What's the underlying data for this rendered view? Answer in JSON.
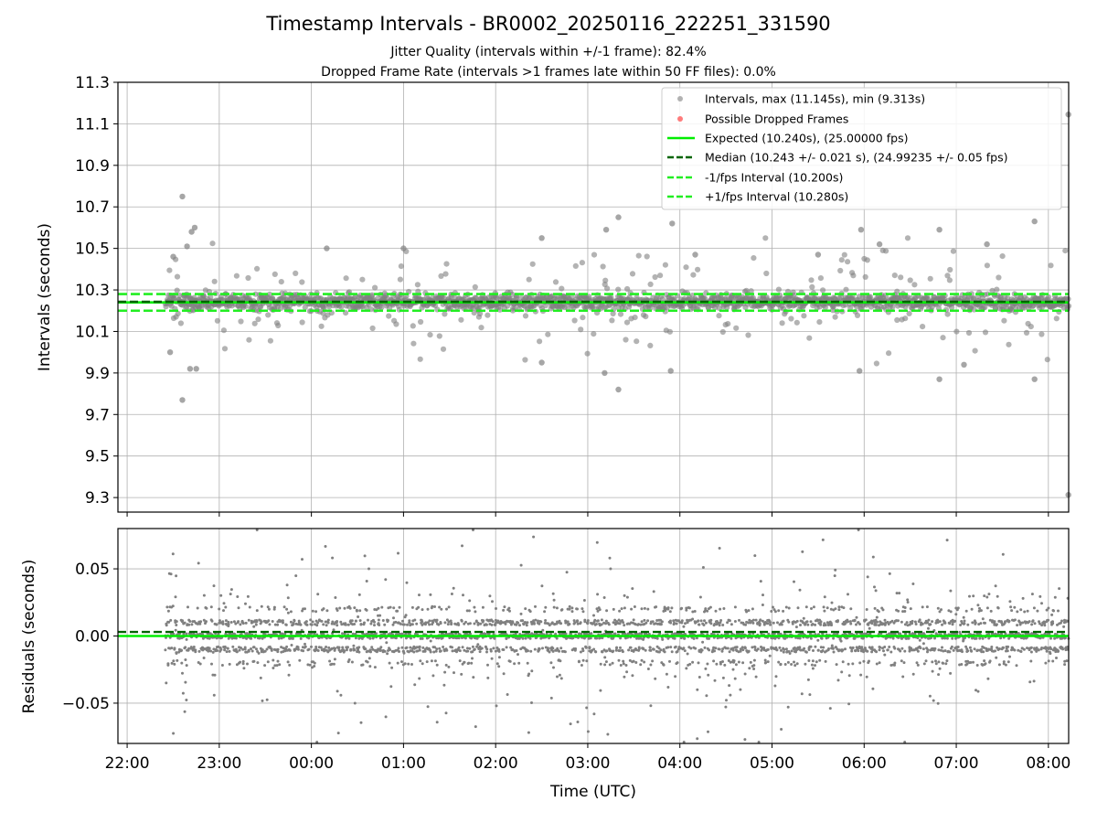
{
  "title": "Timestamp Intervals - BR0002_20250116_222251_331590",
  "subtitle_1": "Jitter Quality (intervals within +/-1 frame): 82.4%",
  "subtitle_2": "Dropped Frame Rate (intervals >1 frames late within 50 FF files): 0.0%",
  "colors": {
    "points": "#808080",
    "dropped": "#ff4444",
    "expected": "#00ee00",
    "median": "#006400",
    "band": "#22ee22",
    "grid": "#b0b0b0"
  },
  "chart_data": [
    {
      "type": "scatter",
      "ylabel": "Intervals (seconds)",
      "ylim": [
        9.23,
        11.3
      ],
      "yticks": [
        "9.3",
        "9.5",
        "9.7",
        "9.9",
        "10.1",
        "10.3",
        "10.5",
        "10.7",
        "10.9",
        "11.1",
        "11.3"
      ],
      "xlim_hours": [
        -2.1,
        8.22
      ],
      "xticks": [
        "22:00",
        "23:00",
        "00:00",
        "01:00",
        "02:00",
        "03:00",
        "04:00",
        "05:00",
        "06:00",
        "07:00",
        "08:00"
      ],
      "grid": true,
      "legend_position": "top-right",
      "legend": [
        "Intervals, max (11.145s), min (9.313s)",
        "Possible Dropped Frames",
        "Expected (10.240s), (25.00000 fps)",
        "Median (10.243 +/- 0.021 s), (24.99235 +/- 0.05 fps)",
        "-1/fps Interval (10.200s)",
        "+1/fps Interval (10.280s)"
      ],
      "time_range": [
        "22:25",
        "08:13"
      ],
      "max_interval": 11.145,
      "min_interval": 9.313,
      "expected": 10.24,
      "median": 10.243,
      "minus_fps": 10.2,
      "plus_fps": 10.28,
      "outliers": [
        {
          "t": "22:36",
          "y": 10.75
        },
        {
          "t": "22:36",
          "y": 9.77
        },
        {
          "t": "22:44",
          "y": 10.6
        },
        {
          "t": "22:42",
          "y": 10.58
        },
        {
          "t": "22:41",
          "y": 9.92
        },
        {
          "t": "22:45",
          "y": 9.92
        },
        {
          "t": "22:30",
          "y": 10.46
        },
        {
          "t": "22:39",
          "y": 10.51
        },
        {
          "t": "22:28",
          "y": 10.0
        },
        {
          "t": "03:20",
          "y": 10.65
        },
        {
          "t": "03:20",
          "y": 9.82
        },
        {
          "t": "03:12",
          "y": 10.59
        },
        {
          "t": "03:11",
          "y": 9.9
        },
        {
          "t": "03:55",
          "y": 10.62
        },
        {
          "t": "03:54",
          "y": 9.91
        },
        {
          "t": "02:30",
          "y": 10.55
        },
        {
          "t": "02:30",
          "y": 9.95
        },
        {
          "t": "05:58",
          "y": 10.59
        },
        {
          "t": "05:57",
          "y": 9.91
        },
        {
          "t": "06:49",
          "y": 10.59
        },
        {
          "t": "06:49",
          "y": 9.87
        },
        {
          "t": "07:51",
          "y": 10.63
        },
        {
          "t": "07:51",
          "y": 9.87
        },
        {
          "t": "08:13",
          "y": 11.145
        },
        {
          "t": "08:13",
          "y": 9.313
        },
        {
          "t": "00:10",
          "y": 10.5
        },
        {
          "t": "01:00",
          "y": 10.5
        },
        {
          "t": "04:10",
          "y": 10.47
        },
        {
          "t": "05:30",
          "y": 10.47
        },
        {
          "t": "06:10",
          "y": 10.52
        },
        {
          "t": "07:20",
          "y": 10.52
        },
        {
          "t": "07:05",
          "y": 9.94
        }
      ]
    },
    {
      "type": "scatter",
      "xlabel": "Time (UTC)",
      "ylabel": "Residuals (seconds)",
      "ylim": [
        -0.08,
        0.08
      ],
      "yticks": [
        "−0.05",
        "0.00",
        "0.05"
      ],
      "xticks": [
        "22:00",
        "23:00",
        "00:00",
        "01:00",
        "02:00",
        "03:00",
        "04:00",
        "05:00",
        "06:00",
        "07:00",
        "08:00"
      ],
      "grid": true,
      "median_residual": 0.003,
      "expected_residual": 0.0
    }
  ]
}
